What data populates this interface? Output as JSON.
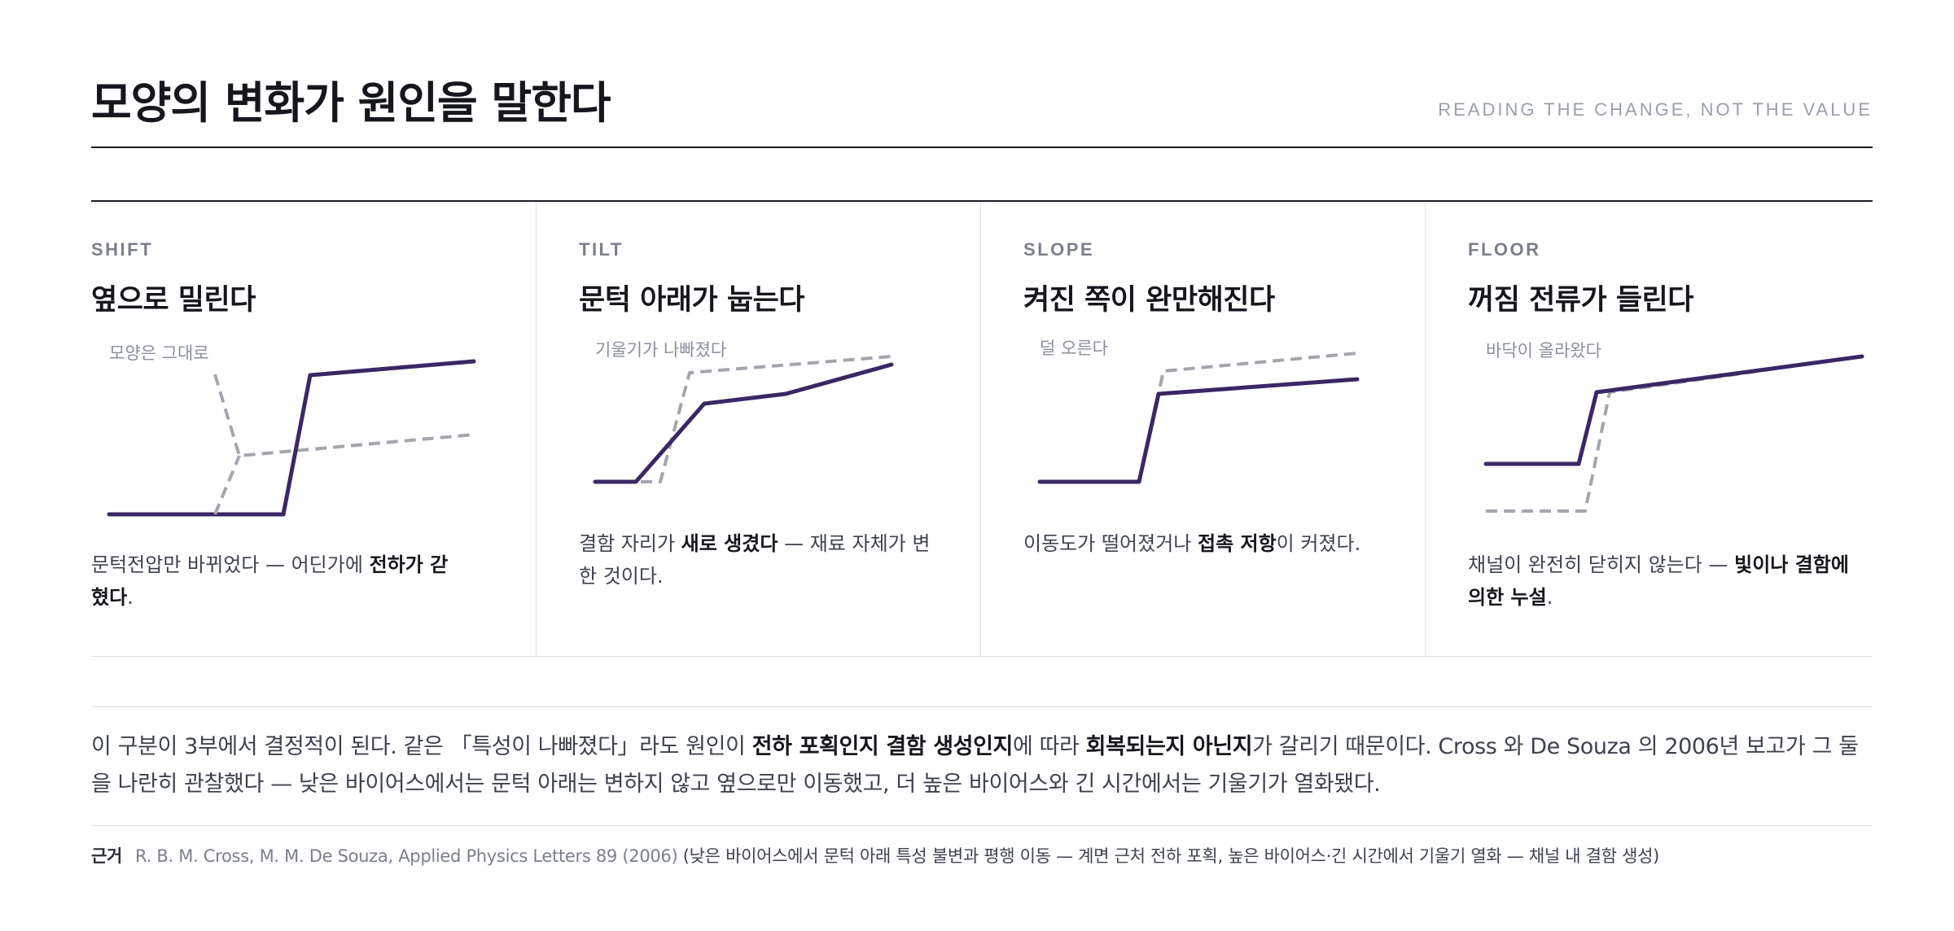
{
  "header": {
    "title": "모양의 변화가 원인을 말한다",
    "subtitle": "READING THE CHANGE, NOT THE VALUE"
  },
  "colors": {
    "accent": "#3a2763",
    "reference": "#a4a6ad",
    "rule": "#1a1c22",
    "divider": "#e1e3e8"
  },
  "panels": [
    {
      "kicker": "SHIFT",
      "title": "옆으로 밀린다",
      "annotation": "모양은 그대로",
      "desc": {
        "pre": "문턱전압만 바뀌었다 — 어딘가에 ",
        "bold": "전하가 갇혔다",
        "post": "."
      }
    },
    {
      "kicker": "TILT",
      "title": "문턱 아래가 눕는다",
      "annotation": "기울기가 나빠졌다",
      "desc": {
        "pre": "결함 자리가 ",
        "bold": "새로 생겼다",
        "post": " — 재료 자체가 변한 것이다."
      }
    },
    {
      "kicker": "SLOPE",
      "title": "켜진 쪽이 완만해진다",
      "annotation": "덜 오른다",
      "desc": {
        "pre": "이동도가 떨어졌거나 ",
        "bold": "접촉 저항",
        "post": "이 커졌다."
      }
    },
    {
      "kicker": "FLOOR",
      "title": "꺼짐 전류가 들린다",
      "annotation": "바닥이 올라왔다",
      "desc": {
        "pre": "채널이 완전히 닫히지 않는다 — ",
        "bold": "빛이나 결함에 의한 누설",
        "post": "."
      }
    }
  ],
  "summary": {
    "t1": "이 구분이 3부에서 결정적이 된다. 같은 「특성이 나빠졌다」라도 원인이 ",
    "b1": "전하 포획인지 결함 생성인지",
    "t2": "에 따라 ",
    "b2": "회복되는지 아닌지",
    "t3": "가 갈리기 때문이다. Cross 와 De Souza 의 2006년 보고가 그 둘을 나란히 관찰했다 — 낮은 바이어스에서는 문턱 아래는 변하지 않고 옆으로만 이동했고, 더 높은 바이어스와 긴 시간에서는 기울기가 열화됐다."
  },
  "source": {
    "label": "근거",
    "citation": "R. B. M. Cross, M. M. De Souza, Applied Physics Letters 89 (2006)",
    "note": " (낮은 바이어스에서 문턱 아래 특성 불변과 평행 이동 — 계면 근처 전하 포획, 높은 바이어스·긴 시간에서 기울기 열화 — 채널 내 결함 생성)"
  }
}
